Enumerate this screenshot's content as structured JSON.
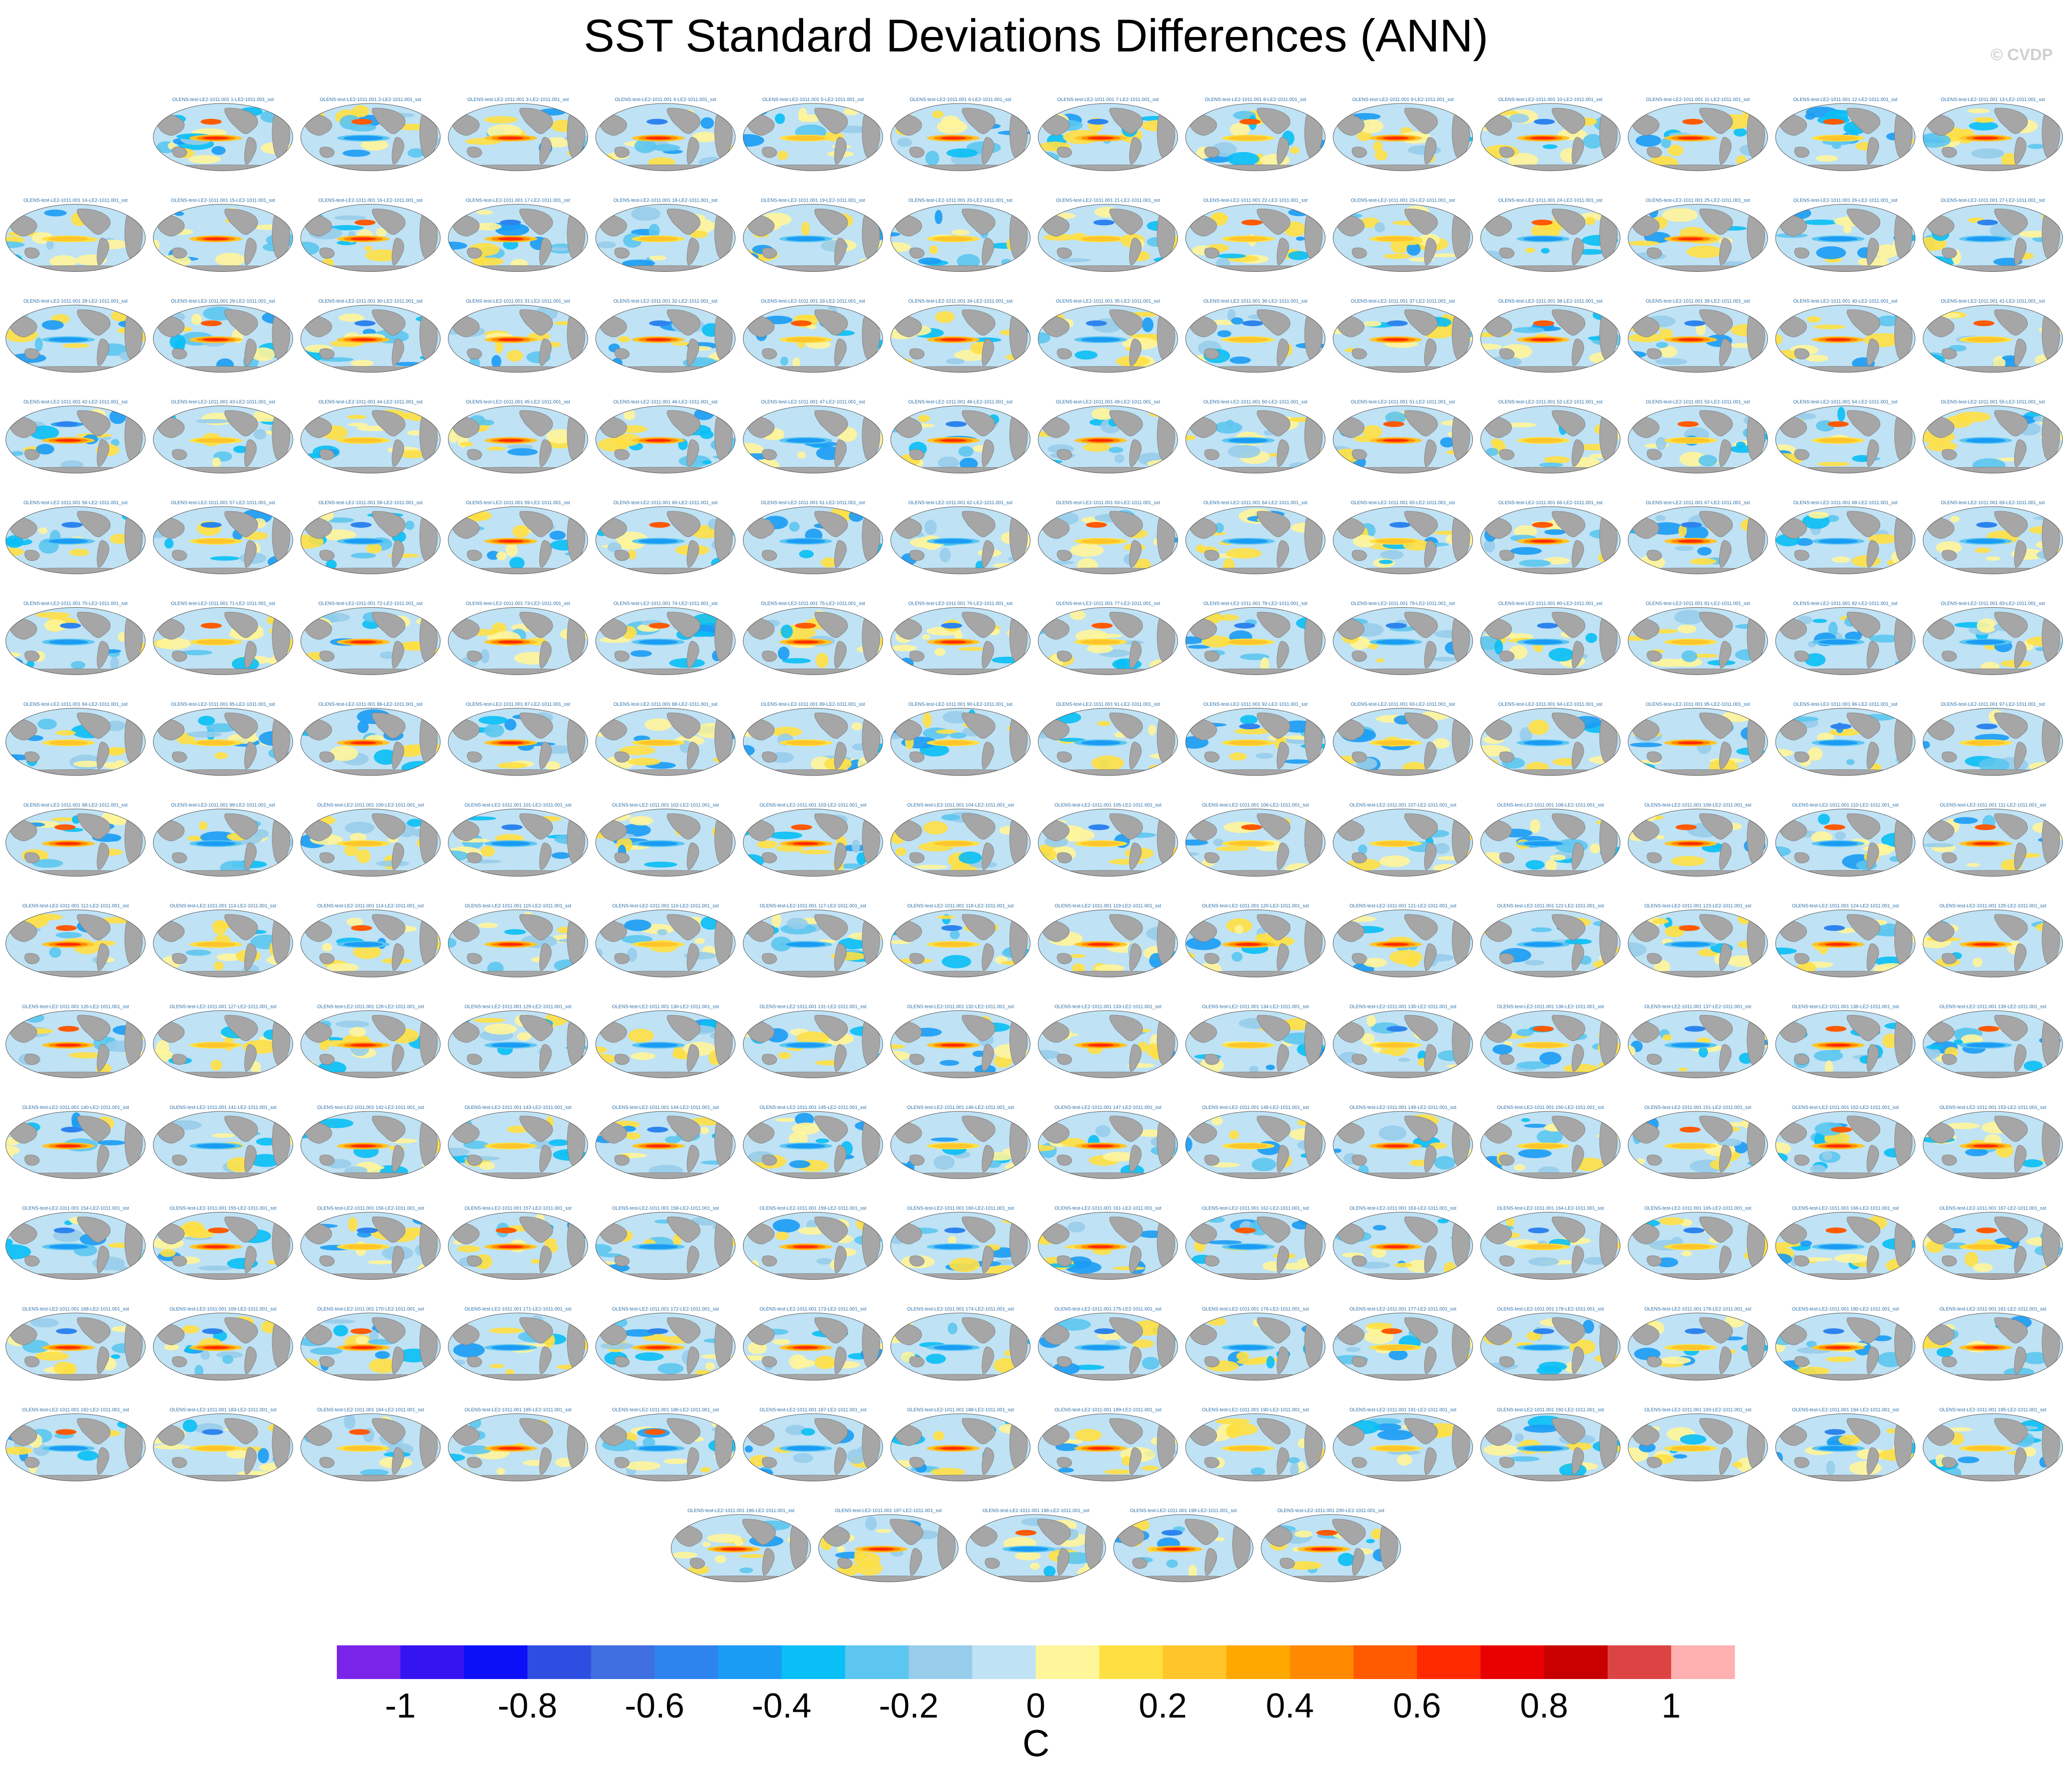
{
  "title": "SST Standard Deviations Differences (ANN)",
  "credit": "© CVDP",
  "chart_data": {
    "type": "heatmap",
    "title": "SST Standard Deviations Differences (ANN)",
    "panel_count": 200,
    "panel_label_template": "OLENS-test-LE2-1011.001 {n}-LE2-1011.001_sst",
    "panel_layout": "rows of 14 panels with first row of 13 and last row of 5",
    "colorbar": {
      "label": "C",
      "ticks": [
        "-1",
        "-0.8",
        "-0.6",
        "-0.4",
        "-0.2",
        "0",
        "0.2",
        "0.4",
        "0.6",
        "0.8",
        "1"
      ],
      "tick_values": [
        -1,
        -0.8,
        -0.6,
        -0.4,
        -0.2,
        0,
        0.2,
        0.4,
        0.6,
        0.8,
        1
      ],
      "levels": [
        -1.1,
        -1.0,
        -0.9,
        -0.8,
        -0.7,
        -0.6,
        -0.5,
        -0.4,
        -0.3,
        -0.2,
        -0.1,
        0,
        0.1,
        0.2,
        0.3,
        0.4,
        0.5,
        0.6,
        0.7,
        0.8,
        0.9,
        1.0,
        1.1
      ],
      "colors": [
        "#7a24ea",
        "#3514f2",
        "#0c10f6",
        "#2e4ee2",
        "#3f6fe0",
        "#2e84ee",
        "#1a9cf5",
        "#09bff5",
        "#5cc6f0",
        "#97cdea",
        "#bfe2f5",
        "#fff59a",
        "#ffe043",
        "#ffc52a",
        "#ffa800",
        "#ff8a00",
        "#ff5a00",
        "#ff2a00",
        "#e80000",
        "#c80000",
        "#dc4444",
        "#ffb0b0"
      ]
    }
  }
}
